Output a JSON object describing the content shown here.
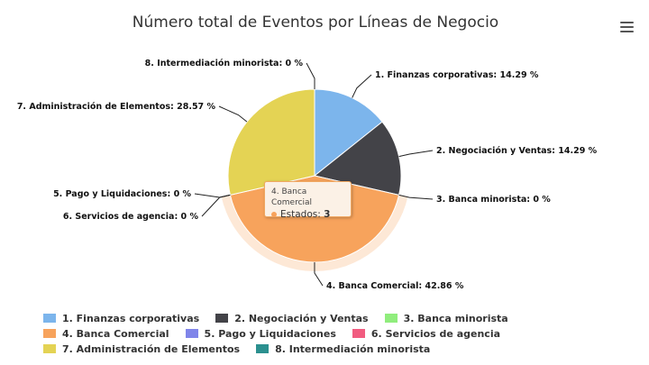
{
  "header": {
    "title": "Número total de Eventos por Líneas de Negocio"
  },
  "menu": {
    "icon": "hamburger-menu-icon"
  },
  "chart_data": {
    "type": "pie",
    "title": "Número total de Eventos por Líneas de Negocio",
    "slices": [
      {
        "name": "1. Finanzas corporativas",
        "value": 14.29,
        "label": "1. Finanzas corporativas: 14.29 %",
        "color": "#7cb5ec"
      },
      {
        "name": "2. Negociación y Ventas",
        "value": 14.29,
        "label": "2. Negociación y Ventas: 14.29 %",
        "color": "#434348"
      },
      {
        "name": "3. Banca minorista",
        "value": 0,
        "label": "3. Banca minorista: 0 %",
        "color": "#90ed7d"
      },
      {
        "name": "4. Banca Comercial",
        "value": 42.86,
        "label": "4. Banca Comercial: 42.86 %",
        "color": "#f7a35c"
      },
      {
        "name": "5. Pago y Liquidaciones",
        "value": 0,
        "label": "5. Pago y Liquidaciones: 0 %",
        "color": "#8085e9"
      },
      {
        "name": "6. Servicios de agencia",
        "value": 0,
        "label": "6. Servicios de agencia: 0 %",
        "color": "#f15c80"
      },
      {
        "name": "7. Administración de Elementos",
        "value": 28.57,
        "label": "7. Administración de Elementos: 28.57 %",
        "color": "#e4d354"
      },
      {
        "name": "8. Intermediación minorista",
        "value": 0,
        "label": "8. Intermediación minorista: 0 %",
        "color": "#2b908f"
      }
    ],
    "hovered_slice": 3,
    "legend_position": "bottom"
  },
  "tooltip": {
    "header": "4. Banca Comercial",
    "series_label": "Estados: ",
    "value": "3",
    "color": "#f7a35c"
  }
}
